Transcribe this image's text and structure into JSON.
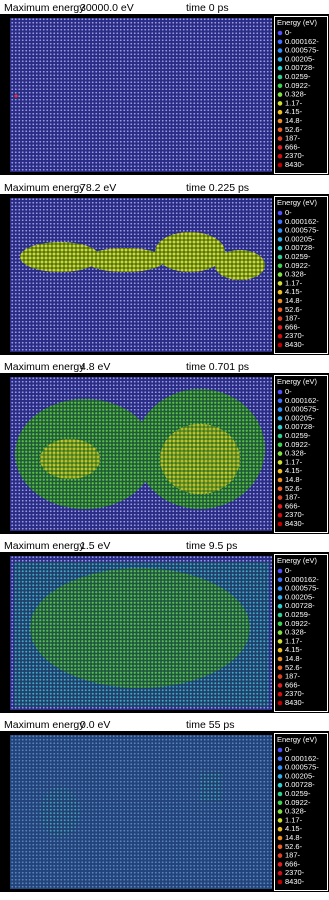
{
  "panels": [
    {
      "label": "Maximum energy",
      "energy": "30000.0 eV",
      "time": "time 0 ps"
    },
    {
      "label": "Maximum energy",
      "energy": "78.2 eV",
      "time": "time 0.225 ps"
    },
    {
      "label": "Maximum energy",
      "energy": "4.8 eV",
      "time": "time 0.701 ps"
    },
    {
      "label": "Maximum energy",
      "energy": "1.5 eV",
      "time": "time 9.5 ps"
    },
    {
      "label": "Maximum energy",
      "energy": "0.0 eV",
      "time": "time 55 ps"
    }
  ],
  "legend": {
    "title": "Energy (eV)",
    "labels": [
      "0-",
      "0.000162-",
      "0.000575-",
      "0.00205-",
      "0.00728-",
      "0.0259-",
      "0.0922-",
      "0.328-",
      "1.17-",
      "4.15-",
      "14.8-",
      "52.6-",
      "187-",
      "666-",
      "2370-",
      "8430-"
    ]
  }
}
